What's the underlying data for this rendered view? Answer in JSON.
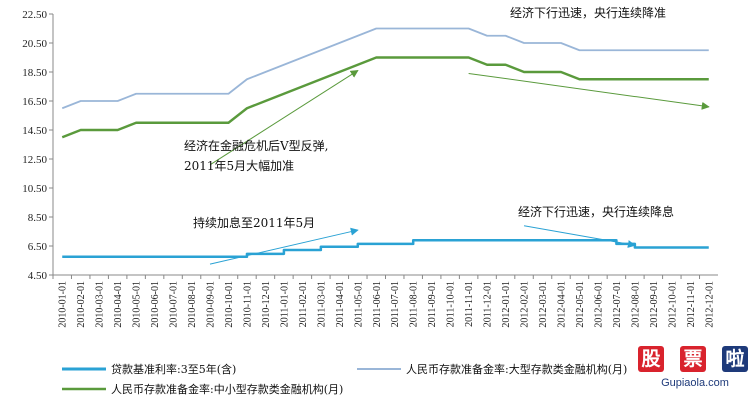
{
  "chart_data": {
    "type": "line",
    "ylim": [
      4.5,
      22.5
    ],
    "yticks": [
      "4.50",
      "6.50",
      "8.50",
      "10.50",
      "12.50",
      "14.50",
      "16.50",
      "18.50",
      "20.50",
      "22.50"
    ],
    "ytick_values": [
      4.5,
      6.5,
      8.5,
      10.5,
      12.5,
      14.5,
      16.5,
      18.5,
      20.5,
      22.5
    ],
    "categories": [
      "2010-01-01",
      "2010-02-01",
      "2010-03-01",
      "2010-04-01",
      "2010-05-01",
      "2010-06-01",
      "2010-07-01",
      "2010-08-01",
      "2010-09-01",
      "2010-10-01",
      "2010-11-01",
      "2010-12-01",
      "2011-01-01",
      "2011-02-01",
      "2011-03-01",
      "2011-04-01",
      "2011-05-01",
      "2011-06-01",
      "2011-07-01",
      "2011-08-01",
      "2011-09-01",
      "2011-10-01",
      "2011-11-01",
      "2011-12-01",
      "2012-01-01",
      "2012-02-01",
      "2012-03-01",
      "2012-04-01",
      "2012-05-01",
      "2012-06-01",
      "2012-07-01",
      "2012-08-01",
      "2012-09-01",
      "2012-10-01",
      "2012-11-01",
      "2012-12-01"
    ],
    "grid": false,
    "legend_position": "bottom",
    "series": [
      {
        "name": "贷款基准利率:3至5年(含)",
        "color": "#2aa2d4",
        "step": true,
        "values": [
          5.76,
          5.76,
          5.76,
          5.76,
          5.76,
          5.76,
          5.76,
          5.76,
          5.76,
          5.76,
          5.96,
          5.96,
          6.22,
          6.22,
          6.45,
          6.45,
          6.65,
          6.65,
          6.65,
          6.9,
          6.9,
          6.9,
          6.9,
          6.9,
          6.9,
          6.9,
          6.9,
          6.9,
          6.9,
          6.9,
          6.65,
          6.4,
          6.4,
          6.4,
          6.4,
          6.4
        ]
      },
      {
        "name": "人民币存款准备金率:大型存款类金融机构(月)",
        "color": "#9ab6d8",
        "step": false,
        "values": [
          16.0,
          16.5,
          16.5,
          16.5,
          17.0,
          17.0,
          17.0,
          17.0,
          17.0,
          17.0,
          18.0,
          18.5,
          19.0,
          19.5,
          20.0,
          20.5,
          21.0,
          21.5,
          21.5,
          21.5,
          21.5,
          21.5,
          21.5,
          21.0,
          21.0,
          20.5,
          20.5,
          20.5,
          20.0,
          20.0,
          20.0,
          20.0,
          20.0,
          20.0,
          20.0,
          20.0
        ]
      },
      {
        "name": "人民币存款准备金率:中小型存款类金融机构(月)",
        "color": "#5a9a3c",
        "step": false,
        "values": [
          14.0,
          14.5,
          14.5,
          14.5,
          15.0,
          15.0,
          15.0,
          15.0,
          15.0,
          15.0,
          16.0,
          16.5,
          17.0,
          17.5,
          18.0,
          18.5,
          19.0,
          19.5,
          19.5,
          19.5,
          19.5,
          19.5,
          19.5,
          19.0,
          19.0,
          18.5,
          18.5,
          18.5,
          18.0,
          18.0,
          18.0,
          18.0,
          18.0,
          18.0,
          18.0,
          18.0
        ]
      }
    ],
    "annotations": [
      {
        "text": "经济下行迅速，央行连续降准"
      },
      {
        "text": "经济在金融危机后V型反弹,"
      },
      {
        "text": "2011年5月大幅加准"
      },
      {
        "text": "持续加息至2011年5月"
      },
      {
        "text": "经济下行迅速，央行连续降息"
      }
    ],
    "annotation_arrows": [
      {
        "color": "#5a9a3c",
        "from": [
          "2010-09-01",
          12.1
        ],
        "to": [
          "2011-05-01",
          18.6
        ]
      },
      {
        "color": "#5a9a3c",
        "from": [
          "2011-11-01",
          18.4
        ],
        "to": [
          "2012-12-01",
          16.1
        ]
      },
      {
        "color": "#2aa2d4",
        "from": [
          "2010-09-01",
          5.25
        ],
        "to": [
          "2011-05-01",
          7.6
        ]
      },
      {
        "color": "#2aa2d4",
        "from": [
          "2012-02-01",
          7.9
        ],
        "to": [
          "2012-08-01",
          6.55
        ]
      }
    ]
  },
  "watermark": {
    "chars": [
      "股",
      "票",
      "啦"
    ],
    "char_colors": [
      "#d9232d",
      "#d9232d",
      "#1e3a7a"
    ],
    "url": "Gupiaola.com"
  }
}
